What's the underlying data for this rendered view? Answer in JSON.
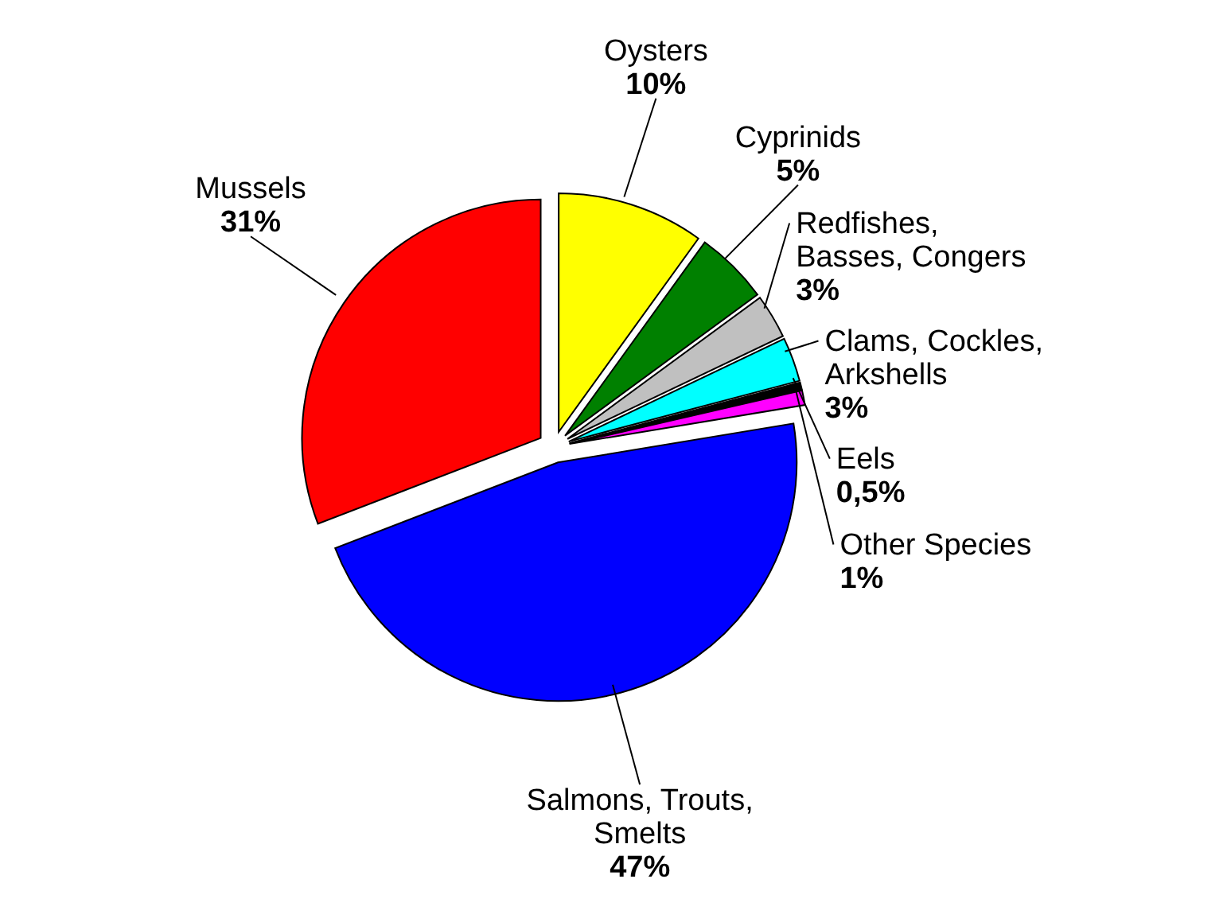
{
  "chart_data": {
    "type": "pie",
    "categories": [
      "Oysters",
      "Cyprinids",
      "Redfishes, Basses, Congers",
      "Clams, Cockles, Arkshells",
      "Eels",
      "Other Species",
      "Salmons, Trouts, Smelts",
      "Mussels"
    ],
    "values": [
      10,
      5,
      3,
      3,
      0.5,
      1,
      47,
      31
    ],
    "value_labels": [
      "10%",
      "5%",
      "3%",
      "3%",
      "0,5%",
      "1%",
      "47%",
      "31%"
    ],
    "colors": [
      "#ffff00",
      "#008000",
      "#c0c0c0",
      "#00ffff",
      "#000000",
      "#ff00ff",
      "#0000ff",
      "#ff0000"
    ],
    "legend": false
  }
}
